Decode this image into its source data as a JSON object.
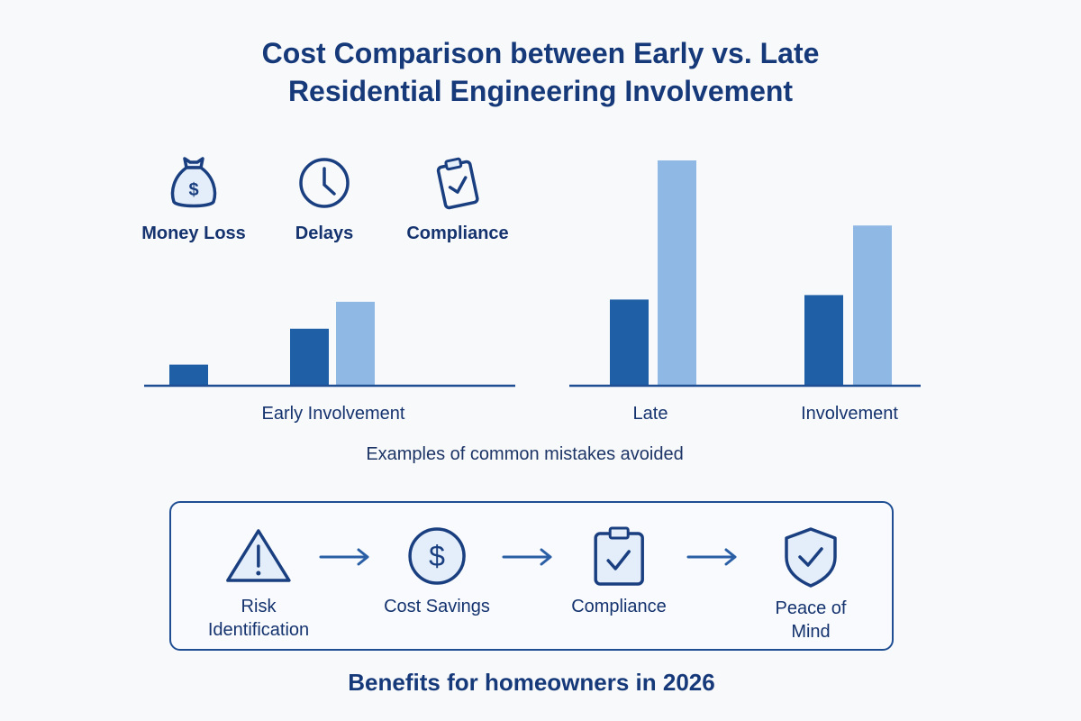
{
  "title_line1": "Cost Comparison between Early vs. Late",
  "title_line2": "Residential Engineering Involvement",
  "icons": [
    {
      "icon": "money-bag-icon",
      "label": "Money Loss"
    },
    {
      "icon": "clock-icon",
      "label": "Delays"
    },
    {
      "icon": "clipboard-check-icon",
      "label": "Compliance"
    }
  ],
  "colors": {
    "dark_bar": "#1f5fa6",
    "light_bar": "#8fb9e4",
    "text": "#15336e",
    "baseline": "#1f4e93"
  },
  "chart_data": {
    "type": "bar",
    "note": "no value axis printed; values are relative bar heights",
    "groups": [
      {
        "label": "Early Involvement",
        "bars": [
          {
            "color": "dark",
            "value": 9
          },
          {
            "color": "dark",
            "value": 25
          },
          {
            "color": "light",
            "value": 37
          }
        ]
      },
      {
        "label": "Late",
        "bars": [
          {
            "color": "dark",
            "value": 38
          },
          {
            "color": "light",
            "value": 100
          }
        ]
      },
      {
        "label": "Involvement",
        "bars": [
          {
            "color": "dark",
            "value": 40
          },
          {
            "color": "light",
            "value": 71
          }
        ]
      }
    ],
    "ylim": [
      0,
      100
    ],
    "grid": false
  },
  "note": "Examples of common mistakes avoided",
  "benefits": [
    {
      "icon": "warning-triangle-icon",
      "label_line1": "Risk",
      "label_line2": "Identification"
    },
    {
      "icon": "dollar-coin-icon",
      "label_line1": "Cost Savings"
    },
    {
      "icon": "clipboard-check-icon",
      "label_line1": "Compliance"
    },
    {
      "icon": "shield-check-icon",
      "label_line1": "Peace of Mind"
    }
  ],
  "footer": "Benefits for homeowners in 2026"
}
